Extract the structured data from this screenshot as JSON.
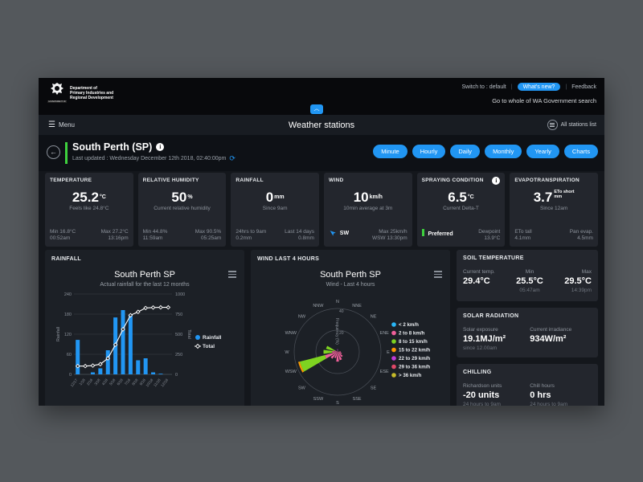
{
  "header": {
    "logo": {
      "dept_lines": [
        "Department of",
        "Primary Industries and",
        "Regional Development"
      ],
      "gov": "GOVERNMENT OF WESTERN AUSTRALIA"
    },
    "switch_label": "Switch to : default",
    "whats_new": "What's new?",
    "feedback": "Feedback",
    "gov_search": "Go to whole of WA Government search",
    "collapse_icon": "^"
  },
  "nav": {
    "menu": "Menu",
    "title": "Weather stations",
    "all_stations": "All stations list"
  },
  "station": {
    "name": "South Perth (SP)",
    "last_updated": "Last updated : Wednesday December 12th 2018, 02:40:00pm",
    "time_buttons": [
      "Minute",
      "Hourly",
      "Daily",
      "Monthly",
      "Yearly",
      "Charts"
    ]
  },
  "stats": [
    {
      "label": "TEMPERATURE",
      "value": "25.2",
      "unit": "°C",
      "sub": "Feels like 24.8°C",
      "foot": {
        "l1": "Min 16.8°C",
        "l2": "00:52am",
        "r1": "Max 27.2°C",
        "r2": "13:16pm"
      }
    },
    {
      "label": "RELATIVE HUMIDITY",
      "value": "50",
      "unit": "%",
      "sub": "Current relative humidity",
      "foot": {
        "l1": "Min 44.8%",
        "l2": "11:59am",
        "r1": "Max 90.5%",
        "r2": "05:25am"
      }
    },
    {
      "label": "RAINFALL",
      "value": "0",
      "unit": "mm",
      "sub": "Since 9am",
      "foot": {
        "l1": "24hrs to 9am",
        "l2": "0.2mm",
        "r1": "Last 14 days",
        "r2": "0.8mm"
      }
    },
    {
      "label": "WIND",
      "value": "10",
      "unit": "km/h",
      "sub": "10min average at 3m",
      "foot": {
        "l1": "SW",
        "r1": "Max 25km/h",
        "r2": "WSW 13:30pm"
      }
    },
    {
      "label": "SPRAYING CONDITION",
      "value": "6.5",
      "unit": "°C",
      "sub": "Current Delta-T",
      "foot": {
        "l1": "Preferred",
        "r1": "Dewpoint",
        "r2": "13.9°C"
      }
    },
    {
      "label": "EVAPOTRANSPIRATION",
      "value": "3.7",
      "unit_line1": "ETo short",
      "unit_line2": "mm",
      "sub": "Since 12am",
      "foot": {
        "l1": "ETo tall",
        "l2": "4.1mm",
        "r1": "Pan evap.",
        "r2": "4.5mm"
      }
    }
  ],
  "panels": {
    "rainfall_label": "RAINFALL",
    "wind_label": "WIND LAST 4 HOURS"
  },
  "side": {
    "soil": {
      "label": "SOIL TEMPERATURE",
      "cols": [
        {
          "head": "Current temp.",
          "value": "29.4°C",
          "sub": ""
        },
        {
          "head": "Min",
          "value": "25.5°C",
          "sub": "05:47am"
        },
        {
          "head": "Max",
          "value": "29.5°C",
          "sub": "14:39pm"
        }
      ]
    },
    "solar": {
      "label": "SOLAR RADIATION",
      "cols": [
        {
          "head": "Solar exposure",
          "value": "19.1MJ/m²",
          "sub": "since 12.00am"
        },
        {
          "head": "Current irradiance",
          "value": "934W/m²",
          "sub": ""
        }
      ]
    },
    "chilling": {
      "label": "CHILLING",
      "cols": [
        {
          "head": "Richardson units",
          "value": "-20 units",
          "sub": "24 hours to 9am"
        },
        {
          "head": "Chill hours",
          "value": "0 hrs",
          "sub": "24 hours to 9am"
        }
      ]
    }
  },
  "chart_data": [
    {
      "type": "bar",
      "title": "South Perth SP",
      "subtitle": "Actual rainfall for the last 12 months",
      "categories": [
        "12/17",
        "1/18",
        "2/18",
        "3/18",
        "4/18",
        "5/18",
        "6/18",
        "7/18",
        "8/18",
        "9/18",
        "10/18",
        "11/18",
        "12/18"
      ],
      "series": [
        {
          "name": "Rainfall",
          "type": "bar",
          "axis": "left",
          "color": "#2196f3",
          "values": [
            103,
            0,
            6,
            18,
            72,
            170,
            192,
            175,
            42,
            48,
            6,
            2,
            0
          ]
        },
        {
          "name": "Total",
          "type": "line",
          "axis": "right",
          "color": "#ffffff",
          "values": [
            103,
            103,
            109,
            127,
            199,
            369,
            561,
            736,
            778,
            826,
            832,
            834,
            834
          ]
        }
      ],
      "ylabel_left": "Rainfall",
      "ylabel_right": "Total",
      "ylim_left": [
        0,
        240
      ],
      "ylim_right": [
        0,
        1000
      ],
      "yticks_left": [
        0,
        60,
        120,
        180,
        240
      ],
      "yticks_right": [
        0,
        250,
        500,
        750,
        1000
      ],
      "legend": [
        "Rainfall",
        "Total"
      ],
      "legend_position": "right",
      "grid": true
    },
    {
      "type": "windrose",
      "title": "South Perth SP",
      "subtitle": "Wind - Last 4 hours",
      "radial_label": "Frequency (%)",
      "rticks": [
        20,
        40
      ],
      "rmax": 40,
      "directions": [
        "N",
        "NNE",
        "NE",
        "ENE",
        "E",
        "ESE",
        "SE",
        "SSE",
        "S",
        "SSW",
        "SW",
        "WSW",
        "W",
        "WNW",
        "NW",
        "NNW"
      ],
      "bins": [
        {
          "name": "< 2 km/h",
          "color": "#29b6f6",
          "values": [
            0,
            0,
            0,
            0,
            0,
            0,
            0,
            0,
            0,
            0,
            0,
            0,
            0,
            0,
            0,
            0
          ]
        },
        {
          "name": "2 to 8 km/h",
          "color": "#f0609a",
          "values": [
            1.5,
            0,
            0,
            1,
            3,
            4,
            6,
            8,
            9,
            6,
            8,
            12,
            5,
            3,
            1,
            0
          ]
        },
        {
          "name": "8 to 15 km/h",
          "color": "#7ed321",
          "values": [
            0,
            0,
            0,
            0,
            0,
            0,
            0,
            0,
            0,
            0,
            0,
            24,
            8,
            8,
            0,
            0
          ]
        },
        {
          "name": "15 to 22 km/h",
          "color": "#ff9800",
          "values": [
            0,
            0,
            0,
            0,
            0,
            0,
            0,
            0,
            0,
            0,
            0,
            1.5,
            0,
            0,
            0,
            0
          ]
        },
        {
          "name": "22 to 29 km/h",
          "color": "#c13ad6",
          "values": [
            1,
            0,
            0,
            0,
            0,
            0,
            0,
            0,
            0,
            0,
            0,
            0,
            0,
            0,
            0,
            0
          ]
        },
        {
          "name": "29 to 36 km/h",
          "color": "#e04868",
          "values": [
            0,
            0,
            0,
            0,
            0,
            0,
            0,
            0,
            0,
            0,
            0,
            0,
            0,
            0,
            0,
            0
          ]
        },
        {
          "name": "> 36 km/h",
          "color": "#c6bb2a",
          "values": [
            0,
            0,
            0,
            0,
            0,
            0,
            0,
            0,
            0,
            0,
            0,
            0,
            0,
            0,
            0,
            0
          ]
        }
      ],
      "legend_position": "right"
    }
  ]
}
